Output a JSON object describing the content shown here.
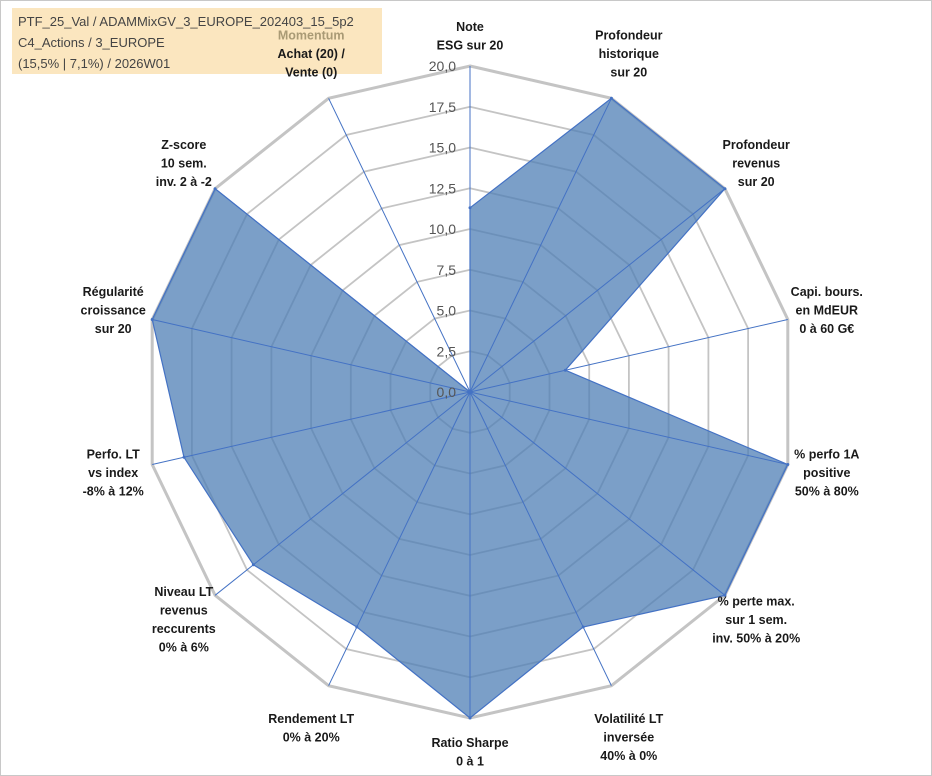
{
  "info_box": {
    "line1": "PTF_25_Val / ADAMMixGV_3_EUROPE_202403_15_5p2",
    "line2": "C4_Actions / 3_EUROPE",
    "line3": "(15,5% | 7,1%) / 2026W01"
  },
  "chart_data": {
    "type": "radar",
    "title": "",
    "rlim": [
      0,
      20
    ],
    "ticks": [
      "0,0",
      "2,5",
      "5,0",
      "7,5",
      "10,0",
      "12,5",
      "15,0",
      "17,5",
      "20,0"
    ],
    "tick_values": [
      0,
      2.5,
      5,
      7.5,
      10,
      12.5,
      15,
      17.5,
      20
    ],
    "grid": true,
    "categories": [
      [
        "Note",
        "ESG sur 20"
      ],
      [
        "Profondeur",
        "historique",
        "sur 20"
      ],
      [
        "Profondeur",
        "revenus",
        "sur 20"
      ],
      [
        "Capi. bours.",
        "en MdEUR",
        "0 à 60 G€"
      ],
      [
        "% perfo 1A",
        "positive",
        "50% à 80%"
      ],
      [
        "% perte max.",
        "sur 1 sem.",
        "inv. 50% à 20%"
      ],
      [
        "Volatilité LT",
        "inversée",
        "40% à 0%"
      ],
      [
        "Ratio Sharpe",
        "0 à 1"
      ],
      [
        "Rendement LT",
        "0% à 20%"
      ],
      [
        "Niveau LT",
        "revenus",
        "reccurents",
        "0% à 6%"
      ],
      [
        "Perfo. LT",
        "vs index",
        "-8% à 12%"
      ],
      [
        "Régularité",
        "croissance",
        "sur 20"
      ],
      [
        "Z-score",
        "10 sem.",
        "inv. 2 à -2"
      ],
      [
        "Momentum",
        "Achat (20) /",
        "Vente (0)"
      ]
    ],
    "series": [
      {
        "values": [
          11.3,
          20,
          20,
          6,
          20,
          20,
          16,
          20,
          16,
          17,
          18,
          20,
          20,
          0
        ],
        "color": "#4f7fb5"
      }
    ],
    "colors": {
      "fill": "#4f7fb5",
      "fill_opacity": 0.75,
      "outline": "#4472c4",
      "grid": "#c4c4c4",
      "axis": "#4472c4",
      "momentum_label": "#a99a75"
    }
  }
}
